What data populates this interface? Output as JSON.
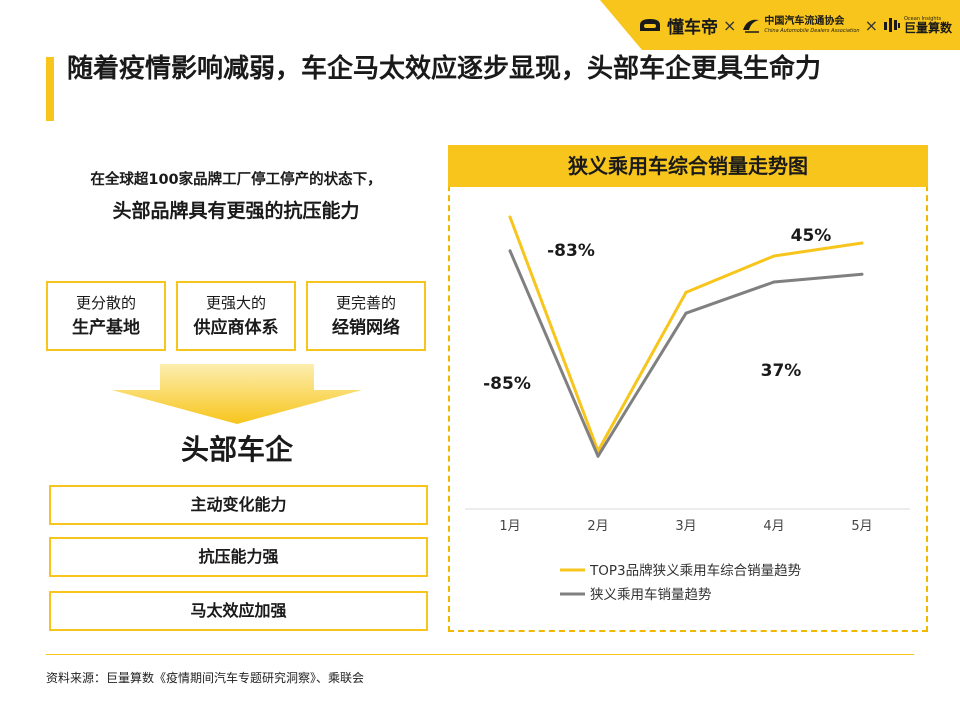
{
  "logos": {
    "brand1": "懂车帝",
    "sep": "×",
    "caam_cn": "中国汽车流通协会",
    "caam_en": "China Automobile Dealers Association",
    "ocean_en": "Ocean Insights",
    "ocean_cn": "巨量算数"
  },
  "title": "随着疫情影响减弱，车企马太效应逐步显现，头部车企更具生命力",
  "intro": {
    "line1": "在全球超100家品牌工厂停工停产的状态下，",
    "line2": "头部品牌具有更强的抗压能力"
  },
  "factors": [
    {
      "l1": "更分散的",
      "l2": "生产基地"
    },
    {
      "l1": "更强大的",
      "l2": "供应商体系"
    },
    {
      "l1": "更完善的",
      "l2": "经销网络"
    }
  ],
  "lead_heading": "头部车企",
  "effects": [
    "主动变化能力",
    "抗压能力强",
    "马太效应加强"
  ],
  "chart_panel_title": "狭义乘用车综合销量走势图",
  "chart_data": {
    "type": "line",
    "categories": [
      "1月",
      "2月",
      "3月",
      "4月",
      "5月"
    ],
    "series": [
      {
        "name": "TOP3品牌狭义乘用车综合销量趋势",
        "color": "#f7c51c",
        "values": [
          100,
          10,
          71,
          85,
          90
        ]
      },
      {
        "name": "狭义乘用车销量趋势",
        "color": "#808080",
        "values": [
          87,
          8,
          63,
          75,
          78
        ]
      }
    ],
    "annotations": [
      {
        "text": "-83%",
        "series": 0,
        "segment": [
          0,
          1
        ]
      },
      {
        "text": "-85%",
        "series": 1,
        "segment": [
          0,
          1
        ]
      },
      {
        "text": "45%",
        "series": 0,
        "segment": [
          3,
          4
        ]
      },
      {
        "text": "37%",
        "series": 1,
        "segment": [
          3,
          4
        ]
      }
    ],
    "grid": false,
    "legend": "bottom-left"
  },
  "source": "资料来源：巨量算数《疫情期间汽车专题研究洞察》、乘联会"
}
